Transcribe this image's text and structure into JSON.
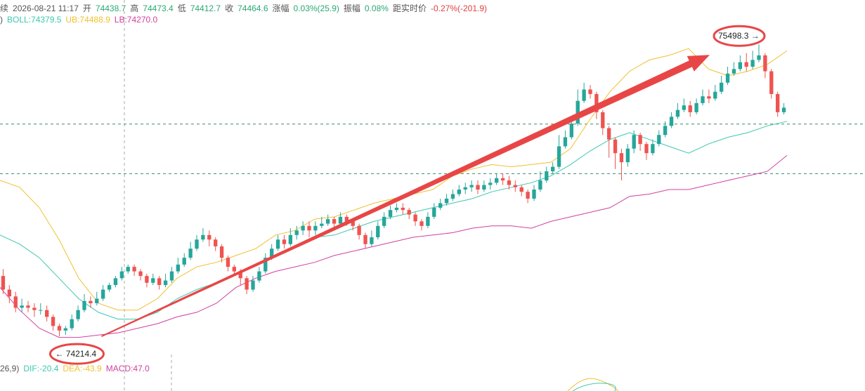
{
  "header": {
    "suffix": "续",
    "datetime": "2026-08-21 11:17",
    "open_label": "开",
    "open": "74438.7",
    "high_label": "高",
    "high": "74473.4",
    "low_label": "低",
    "low": "74412.7",
    "close_label": "收",
    "close": "74464.6",
    "change_label": "涨幅",
    "change": "0.03%(25.9)",
    "amp_label": "振幅",
    "amp": "0.08%",
    "dist_label": "距实时价",
    "dist": "-0.27%(-201.9)"
  },
  "boll": {
    "paren": ")",
    "mid": "BOLL:74379.5",
    "ub": "UB:74488.9",
    "lb": "LB:74270.0"
  },
  "macd": {
    "params": "26,9)",
    "dif": "DIF:-20.4",
    "dea": "DEA:-43.9",
    "macd": "MACD:47.0"
  },
  "annotations": {
    "low_marker": "← 74214.4",
    "high_marker": "75498.3 →"
  },
  "colors": {
    "up": "#26a69a",
    "down": "#ef5350",
    "ub": "#f0c030",
    "mid": "#3cc8b0",
    "lb": "#d040a0",
    "arrow": "#e84646",
    "grid": "#aaaaaa",
    "header_up": "#2aa876",
    "header_down": "#e04040"
  },
  "chart_data": {
    "type": "candlestick",
    "ylim": [
      74150,
      75570
    ],
    "price_lines": [
      75148,
      74930
    ],
    "bands": {
      "ub": [
        74900,
        74870,
        74780,
        74640,
        74470,
        74360,
        74330,
        74330,
        74380,
        74470,
        74520,
        74540,
        74570,
        74600,
        74660,
        74680,
        74730,
        74740,
        74770,
        74800,
        74820,
        74840,
        74860,
        74920,
        74950,
        74970,
        74960,
        74970,
        74980,
        75040,
        75170,
        75290,
        75380,
        75430,
        75450,
        75480,
        75390,
        75360,
        75380,
        75410,
        75470
      ],
      "mid": [
        74660,
        74620,
        74560,
        74470,
        74380,
        74320,
        74290,
        74290,
        74320,
        74380,
        74420,
        74450,
        74490,
        74530,
        74570,
        74610,
        74650,
        74660,
        74690,
        74720,
        74740,
        74760,
        74780,
        74800,
        74820,
        74850,
        74870,
        74890,
        74920,
        74970,
        75030,
        75080,
        75110,
        75080,
        75050,
        75020,
        75060,
        75090,
        75110,
        75140,
        75160
      ],
      "lb": [
        74430,
        74330,
        74250,
        74210,
        74210,
        74220,
        74230,
        74250,
        74270,
        74300,
        74320,
        74360,
        74430,
        74470,
        74500,
        74520,
        74540,
        74570,
        74590,
        74610,
        74630,
        74650,
        74660,
        74670,
        74690,
        74700,
        74700,
        74690,
        74720,
        74740,
        74760,
        74780,
        74830,
        74840,
        74860,
        74860,
        74880,
        74900,
        74920,
        74940,
        75010
      ]
    },
    "candles": [
      [
        74480,
        74420,
        74510,
        74400
      ],
      [
        74420,
        74390,
        74440,
        74360
      ],
      [
        74390,
        74340,
        74410,
        74320
      ],
      [
        74340,
        74350,
        74380,
        74320
      ],
      [
        74350,
        74340,
        74370,
        74320
      ],
      [
        74340,
        74330,
        74360,
        74300
      ],
      [
        74330,
        74330,
        74360,
        74310
      ],
      [
        74330,
        74300,
        74350,
        74280
      ],
      [
        74300,
        74260,
        74310,
        74240
      ],
      [
        74260,
        74240,
        74270,
        74214.4
      ],
      [
        74240,
        74250,
        74260,
        74220
      ],
      [
        74250,
        74290,
        74310,
        74240
      ],
      [
        74290,
        74330,
        74350,
        74280
      ],
      [
        74330,
        74370,
        74400,
        74320
      ],
      [
        74370,
        74360,
        74390,
        74340
      ],
      [
        74360,
        74380,
        74410,
        74350
      ],
      [
        74380,
        74420,
        74440,
        74370
      ],
      [
        74420,
        74440,
        74450,
        74410
      ],
      [
        74440,
        74470,
        74480,
        74430
      ],
      [
        74470,
        74500,
        74520,
        74460
      ],
      [
        74500,
        74520,
        74530,
        74490
      ],
      [
        74520,
        74500,
        74530,
        74480
      ],
      [
        74500,
        74480,
        74510,
        74460
      ],
      [
        74480,
        74450,
        74490,
        74430
      ],
      [
        74450,
        74470,
        74490,
        74440
      ],
      [
        74470,
        74440,
        74480,
        74420
      ],
      [
        74440,
        74460,
        74490,
        74430
      ],
      [
        74460,
        74500,
        74520,
        74450
      ],
      [
        74500,
        74530,
        74560,
        74490
      ],
      [
        74530,
        74560,
        74580,
        74520
      ],
      [
        74560,
        74600,
        74630,
        74550
      ],
      [
        74600,
        74640,
        74660,
        74590
      ],
      [
        74640,
        74660,
        74690,
        74630
      ],
      [
        74660,
        74640,
        74680,
        74610
      ],
      [
        74640,
        74610,
        74650,
        74590
      ],
      [
        74610,
        74560,
        74620,
        74540
      ],
      [
        74560,
        74520,
        74570,
        74500
      ],
      [
        74520,
        74500,
        74530,
        74480
      ],
      [
        74500,
        74470,
        74510,
        74440
      ],
      [
        74470,
        74420,
        74480,
        74400
      ],
      [
        74420,
        74460,
        74480,
        74410
      ],
      [
        74460,
        74500,
        74520,
        74450
      ],
      [
        74500,
        74560,
        74580,
        74490
      ],
      [
        74560,
        74600,
        74620,
        74550
      ],
      [
        74600,
        74640,
        74660,
        74590
      ],
      [
        74640,
        74620,
        74660,
        74600
      ],
      [
        74620,
        74660,
        74690,
        74610
      ],
      [
        74660,
        74680,
        74700,
        74640
      ],
      [
        74680,
        74700,
        74720,
        74660
      ],
      [
        74700,
        74680,
        74720,
        74650
      ],
      [
        74680,
        74700,
        74720,
        74660
      ],
      [
        74700,
        74710,
        74740,
        74690
      ],
      [
        74710,
        74730,
        74750,
        74700
      ],
      [
        74730,
        74710,
        74740,
        74690
      ],
      [
        74710,
        74740,
        74760,
        74700
      ],
      [
        74740,
        74720,
        74750,
        74700
      ],
      [
        74720,
        74700,
        74730,
        74680
      ],
      [
        74700,
        74660,
        74710,
        74640
      ],
      [
        74660,
        74620,
        74670,
        74600
      ],
      [
        74620,
        74650,
        74680,
        74610
      ],
      [
        74650,
        74700,
        74720,
        74640
      ],
      [
        74700,
        74740,
        74760,
        74690
      ],
      [
        74740,
        74770,
        74790,
        74730
      ],
      [
        74770,
        74780,
        74800,
        74760
      ],
      [
        74780,
        74770,
        74800,
        74750
      ],
      [
        74770,
        74750,
        74780,
        74730
      ],
      [
        74750,
        74720,
        74760,
        74700
      ],
      [
        74720,
        74700,
        74730,
        74680
      ],
      [
        74700,
        74740,
        74760,
        74690
      ],
      [
        74740,
        74780,
        74800,
        74730
      ],
      [
        74780,
        74800,
        74820,
        74770
      ],
      [
        74800,
        74820,
        74840,
        74790
      ],
      [
        74820,
        74840,
        74860,
        74810
      ],
      [
        74840,
        74860,
        74880,
        74830
      ],
      [
        74860,
        74870,
        74890,
        74840
      ],
      [
        74870,
        74880,
        74900,
        74850
      ],
      [
        74880,
        74860,
        74900,
        74840
      ],
      [
        74860,
        74880,
        74900,
        74850
      ],
      [
        74880,
        74890,
        74910,
        74860
      ],
      [
        74890,
        74910,
        74930,
        74880
      ],
      [
        74910,
        74900,
        74930,
        74880
      ],
      [
        74900,
        74880,
        74920,
        74860
      ],
      [
        74880,
        74870,
        74900,
        74850
      ],
      [
        74870,
        74850,
        74880,
        74830
      ],
      [
        74850,
        74820,
        74860,
        74800
      ],
      [
        74820,
        74860,
        74880,
        74810
      ],
      [
        74860,
        74900,
        74940,
        74850
      ],
      [
        74900,
        74940,
        74960,
        74890
      ],
      [
        74940,
        74960,
        74980,
        74930
      ],
      [
        74960,
        75050,
        75100,
        74950
      ],
      [
        75050,
        75090,
        75120,
        75040
      ],
      [
        75090,
        75150,
        75180,
        75080
      ],
      [
        75150,
        75250,
        75300,
        75140
      ],
      [
        75250,
        75300,
        75330,
        75240
      ],
      [
        75300,
        75280,
        75320,
        75260
      ],
      [
        75280,
        75200,
        75290,
        75170
      ],
      [
        75200,
        75130,
        75210,
        75100
      ],
      [
        75130,
        75080,
        75140,
        75000
      ],
      [
        75080,
        75020,
        75090,
        74950
      ],
      [
        75020,
        74980,
        75040,
        74900
      ],
      [
        74980,
        75040,
        75060,
        74960
      ],
      [
        75040,
        75100,
        75120,
        75020
      ],
      [
        75100,
        75060,
        75110,
        75030
      ],
      [
        75060,
        75020,
        75070,
        74990
      ],
      [
        75020,
        75060,
        75080,
        75010
      ],
      [
        75060,
        75100,
        75120,
        75050
      ],
      [
        75100,
        75140,
        75160,
        75090
      ],
      [
        75140,
        75180,
        75200,
        75130
      ],
      [
        75180,
        75210,
        75240,
        75170
      ],
      [
        75210,
        75230,
        75260,
        75200
      ],
      [
        75230,
        75200,
        75250,
        75180
      ],
      [
        75200,
        75240,
        75260,
        75190
      ],
      [
        75240,
        75270,
        75300,
        75230
      ],
      [
        75270,
        75260,
        75300,
        75240
      ],
      [
        75260,
        75290,
        75320,
        75250
      ],
      [
        75290,
        75330,
        75360,
        75280
      ],
      [
        75330,
        75370,
        75400,
        75320
      ],
      [
        75370,
        75390,
        75420,
        75360
      ],
      [
        75390,
        75420,
        75450,
        75380
      ],
      [
        75420,
        75400,
        75460,
        75380
      ],
      [
        75400,
        75430,
        75470,
        75390
      ],
      [
        75430,
        75450,
        75498.3,
        75420
      ],
      [
        75450,
        75380,
        75460,
        75350
      ],
      [
        75380,
        75280,
        75390,
        75260
      ],
      [
        75280,
        75200,
        75290,
        75180
      ],
      [
        75200,
        75220,
        75240,
        75190
      ]
    ]
  }
}
